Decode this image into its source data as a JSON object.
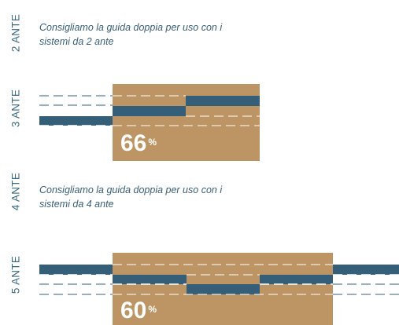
{
  "sections": [
    {
      "label": "2 ANTE",
      "note_line1": "Consigliamo la guida doppia per uso con i",
      "note_line2": "sistemi da 2 ante"
    },
    {
      "label": "3 ANTE",
      "percent_value": "66",
      "percent_sign": "%"
    },
    {
      "label": "4 ANTE",
      "note_line1": "Consigliamo la guida doppia per uso con i",
      "note_line2": "sistemi da 4 ante"
    },
    {
      "label": "5 ANTE",
      "percent_value": "60",
      "percent_sign": "%"
    }
  ],
  "colors": {
    "panel": "#bd9463",
    "door": "#355e78",
    "label": "#3a6a80",
    "note": "#3a5f78",
    "dash_on_white": "#355e78",
    "dash_on_panel": "#ffffff"
  }
}
